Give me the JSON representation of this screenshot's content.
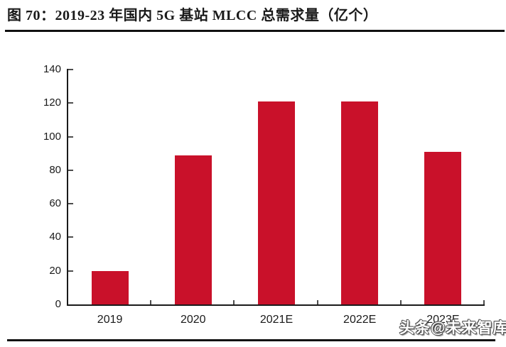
{
  "page": {
    "title": "图 70：2019-23 年国内 5G 基站 MLCC 总需求量（亿个）",
    "watermark": "头条@未来智库"
  },
  "colors": {
    "bar": "#C9112A",
    "axis": "#1a1a1a",
    "tick": "#4d4d4d",
    "rule": "#111111",
    "text": "#1a1a1a"
  },
  "chart_data": {
    "type": "bar",
    "title": "图 70：2019-23 年国内 5G 基站 MLCC 总需求量（亿个）",
    "categories": [
      "2019",
      "2020",
      "2021E",
      "2022E",
      "2023E"
    ],
    "values": [
      20,
      89,
      121,
      121,
      91
    ],
    "xlabel": "",
    "ylabel": "",
    "ylim": [
      0,
      140
    ],
    "yticks": [
      0,
      20,
      40,
      60,
      80,
      100,
      120,
      140
    ],
    "grid": false,
    "legend": "none",
    "bar_color": "#C9112A"
  }
}
